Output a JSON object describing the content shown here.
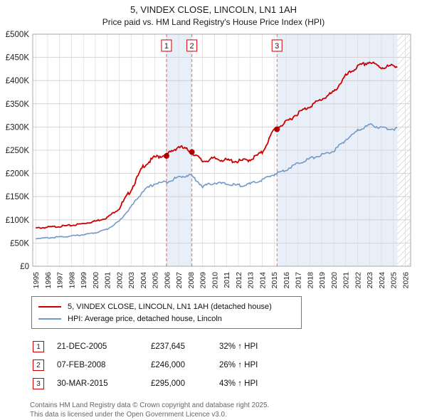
{
  "header": {
    "title": "5, VINDEX CLOSE, LINCOLN, LN1 1AH",
    "subtitle": "Price paid vs. HM Land Registry's House Price Index (HPI)"
  },
  "legend": {
    "series1": "5, VINDEX CLOSE, LINCOLN, LN1 1AH (detached house)",
    "series2": "HPI: Average price, detached house, Lincoln"
  },
  "transactions": [
    {
      "num": "1",
      "date": "21-DEC-2005",
      "price": "£237,645",
      "hpi": "32% ↑ HPI"
    },
    {
      "num": "2",
      "date": "07-FEB-2008",
      "price": "£246,000",
      "hpi": "26% ↑ HPI"
    },
    {
      "num": "3",
      "date": "30-MAR-2015",
      "price": "£295,000",
      "hpi": "43% ↑ HPI"
    }
  ],
  "footer": {
    "line1": "Contains HM Land Registry data © Crown copyright and database right 2025.",
    "line2": "This data is licensed under the Open Government Licence v3.0."
  },
  "chart_data": {
    "type": "line",
    "title": "5, VINDEX CLOSE, LINCOLN, LN1 1AH",
    "subtitle": "Price paid vs. HM Land Registry's House Price Index (HPI)",
    "x_years": [
      1995,
      1996,
      1997,
      1998,
      1999,
      2000,
      2001,
      2002,
      2003,
      2004,
      2005,
      2006,
      2007,
      2008,
      2009,
      2010,
      2011,
      2012,
      2013,
      2014,
      2015,
      2016,
      2017,
      2018,
      2019,
      2020,
      2021,
      2022,
      2023,
      2024,
      2025
    ],
    "series": [
      {
        "name": "5, VINDEX CLOSE, LINCOLN, LN1 1AH (detached house)",
        "color": "#cc0000",
        "values": [
          82000,
          84000,
          86000,
          88000,
          92000,
          97000,
          105000,
          125000,
          165000,
          215000,
          235000,
          240000,
          258000,
          248000,
          226000,
          232000,
          228000,
          226000,
          230000,
          245000,
          295000,
          310000,
          330000,
          345000,
          360000,
          375000,
          410000,
          430000,
          440000,
          428000,
          432000
        ]
      },
      {
        "name": "HPI: Average price, detached house, Lincoln",
        "color": "#7399c6",
        "values": [
          60000,
          61000,
          63000,
          65000,
          68000,
          72000,
          80000,
          97000,
          128000,
          162000,
          178000,
          182000,
          192000,
          197000,
          172000,
          180000,
          177000,
          174000,
          177000,
          186000,
          198000,
          208000,
          222000,
          232000,
          240000,
          248000,
          272000,
          292000,
          305000,
          298000,
          296000
        ]
      }
    ],
    "markers": [
      {
        "label": "1",
        "x": 2005.97,
        "y": 237645
      },
      {
        "label": "2",
        "x": 2008.1,
        "y": 246000
      },
      {
        "label": "3",
        "x": 2015.24,
        "y": 295000
      }
    ],
    "ylim": [
      0,
      500000
    ],
    "ytick_step": 50000,
    "ytick_labels": [
      "£0",
      "£50K",
      "£100K",
      "£150K",
      "£200K",
      "£250K",
      "£300K",
      "£350K",
      "£400K",
      "£450K",
      "£500K"
    ],
    "xlim": [
      1994.75,
      2026.45
    ],
    "xtick_labels": [
      "1995",
      "1996",
      "1997",
      "1998",
      "1999",
      "2000",
      "2001",
      "2002",
      "2003",
      "2004",
      "2005",
      "2006",
      "2007",
      "2008",
      "2009",
      "2010",
      "2011",
      "2012",
      "2013",
      "2014",
      "2015",
      "2016",
      "2017",
      "2018",
      "2019",
      "2020",
      "2021",
      "2022",
      "2023",
      "2024",
      "2025",
      "2026"
    ],
    "shaded_regions": [
      [
        2005.97,
        2008.1
      ],
      [
        2015.24,
        2025.35
      ]
    ],
    "hatched_region": [
      2025.35,
      2026.45
    ],
    "shade_color": "#e9eff8",
    "grid": true,
    "legend_position": "below"
  }
}
